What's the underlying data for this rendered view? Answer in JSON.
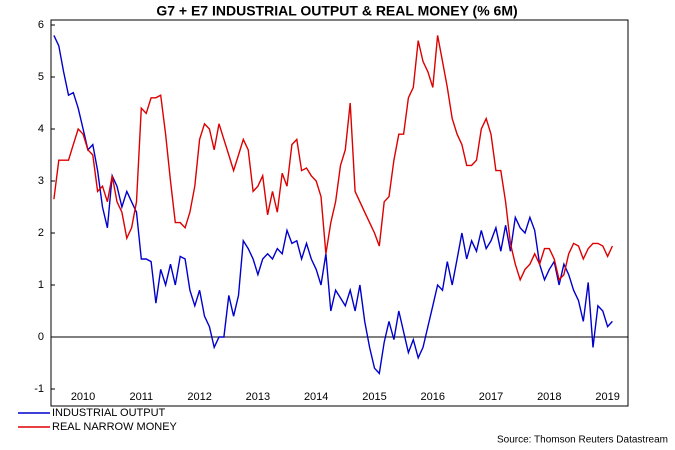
{
  "chart_data": {
    "type": "line",
    "title": "G7 + E7 INDUSTRIAL OUTPUT & REAL MONEY (% 6M)",
    "source": "Source: Thomson Reuters Datastream",
    "x": [
      2010.0,
      2010.083,
      2010.167,
      2010.25,
      2010.333,
      2010.417,
      2010.5,
      2010.583,
      2010.667,
      2010.75,
      2010.833,
      2010.917,
      2011.0,
      2011.083,
      2011.167,
      2011.25,
      2011.333,
      2011.417,
      2011.5,
      2011.583,
      2011.667,
      2011.75,
      2011.833,
      2011.917,
      2012.0,
      2012.083,
      2012.167,
      2012.25,
      2012.333,
      2012.417,
      2012.5,
      2012.583,
      2012.667,
      2012.75,
      2012.833,
      2012.917,
      2013.0,
      2013.083,
      2013.167,
      2013.25,
      2013.333,
      2013.417,
      2013.5,
      2013.583,
      2013.667,
      2013.75,
      2013.833,
      2013.917,
      2014.0,
      2014.083,
      2014.167,
      2014.25,
      2014.333,
      2014.417,
      2014.5,
      2014.583,
      2014.667,
      2014.75,
      2014.833,
      2014.917,
      2015.0,
      2015.083,
      2015.167,
      2015.25,
      2015.333,
      2015.417,
      2015.5,
      2015.583,
      2015.667,
      2015.75,
      2015.833,
      2015.917,
      2016.0,
      2016.083,
      2016.167,
      2016.25,
      2016.333,
      2016.417,
      2016.5,
      2016.583,
      2016.667,
      2016.75,
      2016.833,
      2016.917,
      2017.0,
      2017.083,
      2017.167,
      2017.25,
      2017.333,
      2017.417,
      2017.5,
      2017.583,
      2017.667,
      2017.75,
      2017.833,
      2017.917,
      2018.0,
      2018.083,
      2018.167,
      2018.25,
      2018.333,
      2018.417,
      2018.5,
      2018.583,
      2018.667,
      2018.75,
      2018.833,
      2018.917,
      2019.0,
      2019.083,
      2019.167,
      2019.25,
      2019.333,
      2019.417,
      2019.5,
      2019.583
    ],
    "series": [
      {
        "name": "INDUSTRIAL OUTPUT",
        "color": "#0000cc",
        "values": [
          5.8,
          5.6,
          5.1,
          4.65,
          4.7,
          4.4,
          4.0,
          3.6,
          3.7,
          3.2,
          2.5,
          2.1,
          3.1,
          2.9,
          2.5,
          2.8,
          2.6,
          2.4,
          1.5,
          1.5,
          1.45,
          0.65,
          1.3,
          1.0,
          1.4,
          1.0,
          1.55,
          1.5,
          0.9,
          0.6,
          0.9,
          0.4,
          0.2,
          -0.2,
          0.0,
          0.0,
          0.8,
          0.4,
          0.8,
          1.85,
          1.7,
          1.5,
          1.2,
          1.5,
          1.6,
          1.5,
          1.7,
          1.6,
          2.05,
          1.8,
          1.85,
          1.5,
          1.8,
          1.5,
          1.3,
          1.0,
          1.6,
          0.5,
          0.9,
          0.75,
          0.6,
          0.9,
          0.5,
          1.0,
          0.3,
          -0.2,
          -0.6,
          -0.7,
          -0.1,
          0.3,
          -0.05,
          0.5,
          0.1,
          -0.3,
          -0.05,
          -0.4,
          -0.2,
          0.2,
          0.6,
          1.0,
          0.9,
          1.45,
          1.0,
          1.5,
          2.0,
          1.5,
          1.85,
          1.65,
          2.05,
          1.7,
          1.85,
          2.1,
          1.65,
          2.15,
          1.65,
          2.3,
          2.1,
          2.0,
          2.3,
          2.05,
          1.4,
          1.1,
          1.3,
          1.45,
          1.0,
          1.4,
          1.2,
          0.9,
          0.7,
          0.3,
          1.05,
          -0.2,
          0.6,
          0.5,
          0.2,
          0.3
        ]
      },
      {
        "name": "REAL NARROW MONEY",
        "color": "#dd0000",
        "values": [
          2.65,
          3.4,
          3.4,
          3.4,
          3.7,
          4.0,
          3.9,
          3.6,
          3.5,
          2.8,
          2.9,
          2.6,
          3.1,
          2.6,
          2.4,
          1.9,
          2.1,
          2.6,
          4.4,
          4.3,
          4.6,
          4.6,
          4.65,
          3.9,
          3.0,
          2.2,
          2.2,
          2.1,
          2.4,
          2.9,
          3.8,
          4.1,
          4.0,
          3.6,
          4.1,
          3.8,
          3.5,
          3.2,
          3.5,
          3.8,
          3.6,
          2.8,
          2.9,
          3.1,
          2.35,
          2.8,
          2.4,
          3.15,
          2.9,
          3.7,
          3.8,
          3.2,
          3.25,
          3.1,
          3.0,
          2.7,
          1.6,
          2.2,
          2.6,
          3.3,
          3.6,
          4.5,
          2.8,
          2.6,
          2.4,
          2.2,
          2.0,
          1.75,
          2.6,
          2.7,
          3.4,
          3.9,
          3.9,
          4.6,
          4.8,
          5.7,
          5.3,
          5.1,
          4.8,
          5.8,
          5.3,
          4.8,
          4.2,
          3.9,
          3.7,
          3.3,
          3.3,
          3.4,
          4.0,
          4.2,
          3.9,
          3.2,
          3.2,
          2.6,
          1.8,
          1.4,
          1.1,
          1.3,
          1.4,
          1.6,
          1.4,
          1.7,
          1.7,
          1.5,
          1.1,
          1.2,
          1.6,
          1.8,
          1.75,
          1.5,
          1.7,
          1.8,
          1.8,
          1.75,
          1.55,
          1.75
        ]
      }
    ],
    "xlim": [
      2009.95,
      2019.85
    ],
    "xticks": [
      {
        "value": 2010.5,
        "label": "2010"
      },
      {
        "value": 2011.5,
        "label": "2011"
      },
      {
        "value": 2012.5,
        "label": "2012"
      },
      {
        "value": 2013.5,
        "label": "2013"
      },
      {
        "value": 2014.5,
        "label": "2014"
      },
      {
        "value": 2015.5,
        "label": "2015"
      },
      {
        "value": 2016.5,
        "label": "2016"
      },
      {
        "value": 2017.5,
        "label": "2017"
      },
      {
        "value": 2018.5,
        "label": "2018"
      },
      {
        "value": 2019.5,
        "label": "2019"
      }
    ],
    "ylim": [
      -1,
      6
    ],
    "yticks": [
      -1,
      0,
      1,
      2,
      3,
      4,
      5,
      6
    ],
    "legend": "bottom-left"
  }
}
